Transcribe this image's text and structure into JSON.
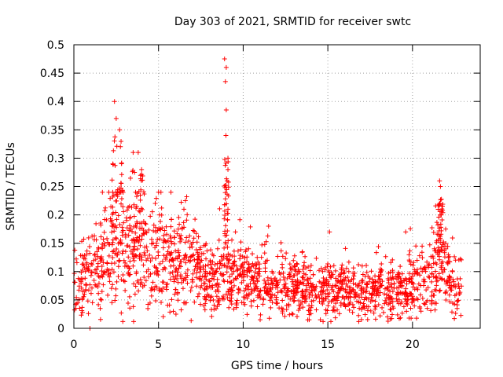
{
  "chart_data": {
    "type": "scatter",
    "title": "Day 303 of 2021, SRMTID for receiver swtc",
    "xlabel": "GPS time / hours",
    "ylabel": "SRMTID / TECUs",
    "xlim": [
      0,
      24
    ],
    "ylim": [
      0,
      0.5
    ],
    "xticks": [
      0,
      5,
      10,
      15,
      20
    ],
    "xtick_labels": [
      "0",
      "5",
      "10",
      "15",
      "20"
    ],
    "yticks": [
      0,
      0.05,
      0.1,
      0.15,
      0.2,
      0.25,
      0.3,
      0.35,
      0.4,
      0.45,
      0.5
    ],
    "ytick_labels": [
      "0",
      "0.05",
      "0.1",
      "0.15",
      "0.2",
      "0.25",
      "0.3",
      "0.35",
      "0.4",
      "0.45",
      "0.5"
    ],
    "grid": true,
    "marker": "+",
    "marker_color": "#ff0000",
    "series": [
      {
        "name": "SRMTID",
        "note": "dense time series; baseline values listed, remaining cloud generated around this envelope",
        "envelope": [
          {
            "x": 0.0,
            "y": 0.08
          },
          {
            "x": 0.5,
            "y": 0.09
          },
          {
            "x": 1.0,
            "y": 0.1
          },
          {
            "x": 1.5,
            "y": 0.11
          },
          {
            "x": 2.0,
            "y": 0.13
          },
          {
            "x": 2.5,
            "y": 0.15
          },
          {
            "x": 3.0,
            "y": 0.14
          },
          {
            "x": 3.5,
            "y": 0.14
          },
          {
            "x": 4.0,
            "y": 0.13
          },
          {
            "x": 4.5,
            "y": 0.12
          },
          {
            "x": 5.0,
            "y": 0.13
          },
          {
            "x": 5.5,
            "y": 0.12
          },
          {
            "x": 6.0,
            "y": 0.13
          },
          {
            "x": 6.5,
            "y": 0.12
          },
          {
            "x": 7.0,
            "y": 0.11
          },
          {
            "x": 7.5,
            "y": 0.1
          },
          {
            "x": 8.0,
            "y": 0.09
          },
          {
            "x": 8.5,
            "y": 0.09
          },
          {
            "x": 9.0,
            "y": 0.1
          },
          {
            "x": 9.5,
            "y": 0.09
          },
          {
            "x": 10.0,
            "y": 0.085
          },
          {
            "x": 11.0,
            "y": 0.08
          },
          {
            "x": 12.0,
            "y": 0.075
          },
          {
            "x": 13.0,
            "y": 0.07
          },
          {
            "x": 14.0,
            "y": 0.07
          },
          {
            "x": 15.0,
            "y": 0.07
          },
          {
            "x": 16.0,
            "y": 0.065
          },
          {
            "x": 17.0,
            "y": 0.065
          },
          {
            "x": 18.0,
            "y": 0.07
          },
          {
            "x": 19.0,
            "y": 0.07
          },
          {
            "x": 20.0,
            "y": 0.07
          },
          {
            "x": 21.0,
            "y": 0.09
          },
          {
            "x": 21.5,
            "y": 0.11
          },
          {
            "x": 22.0,
            "y": 0.1
          },
          {
            "x": 22.5,
            "y": 0.08
          },
          {
            "x": 22.9,
            "y": 0.07
          }
        ],
        "peaks": [
          {
            "x": 2.4,
            "y": 0.4
          },
          {
            "x": 2.5,
            "y": 0.37
          },
          {
            "x": 2.7,
            "y": 0.35
          },
          {
            "x": 2.3,
            "y": 0.29
          },
          {
            "x": 3.5,
            "y": 0.31
          },
          {
            "x": 3.8,
            "y": 0.31
          },
          {
            "x": 4.0,
            "y": 0.28
          },
          {
            "x": 5.0,
            "y": 0.24
          },
          {
            "x": 6.5,
            "y": 0.21
          },
          {
            "x": 8.9,
            "y": 0.475
          },
          {
            "x": 9.0,
            "y": 0.46
          },
          {
            "x": 8.95,
            "y": 0.435
          },
          {
            "x": 9.0,
            "y": 0.385
          },
          {
            "x": 8.98,
            "y": 0.34
          },
          {
            "x": 9.1,
            "y": 0.3
          },
          {
            "x": 9.1,
            "y": 0.28
          },
          {
            "x": 9.05,
            "y": 0.26
          },
          {
            "x": 9.1,
            "y": 0.21
          },
          {
            "x": 11.5,
            "y": 0.18
          },
          {
            "x": 15.1,
            "y": 0.17
          },
          {
            "x": 19.6,
            "y": 0.17
          },
          {
            "x": 21.6,
            "y": 0.26
          },
          {
            "x": 21.65,
            "y": 0.25
          },
          {
            "x": 21.6,
            "y": 0.22
          },
          {
            "x": 21.7,
            "y": 0.2
          }
        ],
        "lows": [
          {
            "x": 0.95,
            "y": 0.0
          },
          {
            "x": 2.8,
            "y": 0.027
          },
          {
            "x": 13.9,
            "y": 0.015
          },
          {
            "x": 19.8,
            "y": 0.018
          }
        ]
      }
    ]
  }
}
